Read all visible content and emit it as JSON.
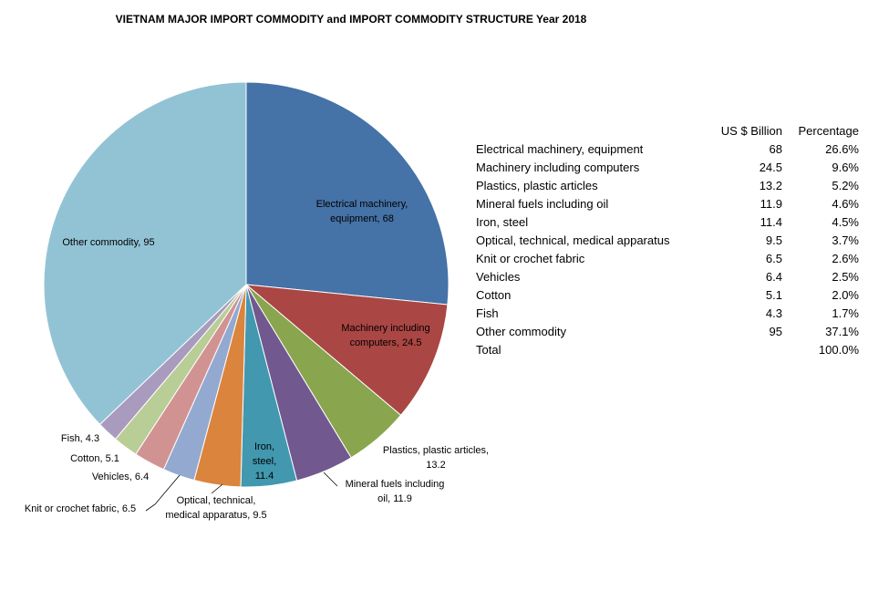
{
  "chart_data": {
    "type": "pie",
    "title": "VIETNAM MAJOR IMPORT COMMODITY and IMPORT COMMODITY STRUCTURE Year 2018",
    "slices": [
      {
        "name": "Electrical machinery, equipment",
        "value": 68,
        "label_lines": [
          "Electrical machinery,",
          "equipment, 68"
        ],
        "color": "#4572A7"
      },
      {
        "name": "Machinery including computers",
        "value": 24.5,
        "label_lines": [
          "Machinery including",
          "computers, 24.5"
        ],
        "color": "#AA4643"
      },
      {
        "name": "Plastics, plastic articles",
        "value": 13.2,
        "label_lines": [
          "Plastics, plastic articles,",
          "13.2"
        ],
        "color": "#89A54E"
      },
      {
        "name": "Mineral fuels including oil",
        "value": 11.9,
        "label_lines": [
          "Mineral fuels including",
          "oil, 11.9"
        ],
        "color": "#71588F"
      },
      {
        "name": "Iron, steel",
        "value": 11.4,
        "label_lines": [
          "Iron,",
          "steel,",
          "11.4"
        ],
        "color": "#4198AF"
      },
      {
        "name": "Optical, technical, medical apparatus",
        "value": 9.5,
        "label_lines": [
          "Optical, technical,",
          "medical apparatus,  9.5"
        ],
        "color": "#DB843D"
      },
      {
        "name": "Knit or crochet fabric",
        "value": 6.5,
        "label_lines": [
          "Knit or crochet fabric, 6.5"
        ],
        "color": "#93A9CF"
      },
      {
        "name": "Vehicles",
        "value": 6.4,
        "label_lines": [
          "Vehicles, 6.4"
        ],
        "color": "#D19392"
      },
      {
        "name": "Cotton",
        "value": 5.1,
        "label_lines": [
          "Cotton, 5.1"
        ],
        "color": "#B9CD96"
      },
      {
        "name": "Fish",
        "value": 4.3,
        "label_lines": [
          "Fish, 4.3"
        ],
        "color": "#A99BBD"
      },
      {
        "name": "Other commodity",
        "value": 95,
        "label_lines": [
          "Other commodity,  95"
        ],
        "color": "#92C3D5"
      }
    ]
  },
  "table": {
    "header": {
      "name": "",
      "value": "US $ Billion",
      "pct": "Percentage"
    },
    "rows": [
      {
        "name": "Electrical machinery, equipment",
        "value": "68",
        "pct": "26.6%"
      },
      {
        "name": "Machinery including computers",
        "value": "24.5",
        "pct": "9.6%"
      },
      {
        "name": "Plastics, plastic articles",
        "value": "13.2",
        "pct": "5.2%"
      },
      {
        "name": "Mineral fuels including oil",
        "value": "11.9",
        "pct": "4.6%"
      },
      {
        "name": "Iron, steel",
        "value": "11.4",
        "pct": "4.5%"
      },
      {
        "name": "Optical, technical, medical apparatus",
        "value": "9.5",
        "pct": "3.7%"
      },
      {
        "name": "Knit or crochet fabric",
        "value": "6.5",
        "pct": "2.6%"
      },
      {
        "name": "Vehicles",
        "value": "6.4",
        "pct": "2.5%"
      },
      {
        "name": "Cotton",
        "value": "5.1",
        "pct": "2.0%"
      },
      {
        "name": "Fish",
        "value": "4.3",
        "pct": "1.7%"
      },
      {
        "name": "Other commodity",
        "value": "95",
        "pct": "37.1%"
      },
      {
        "name": "Total",
        "value": "",
        "pct": "100.0%"
      }
    ]
  }
}
